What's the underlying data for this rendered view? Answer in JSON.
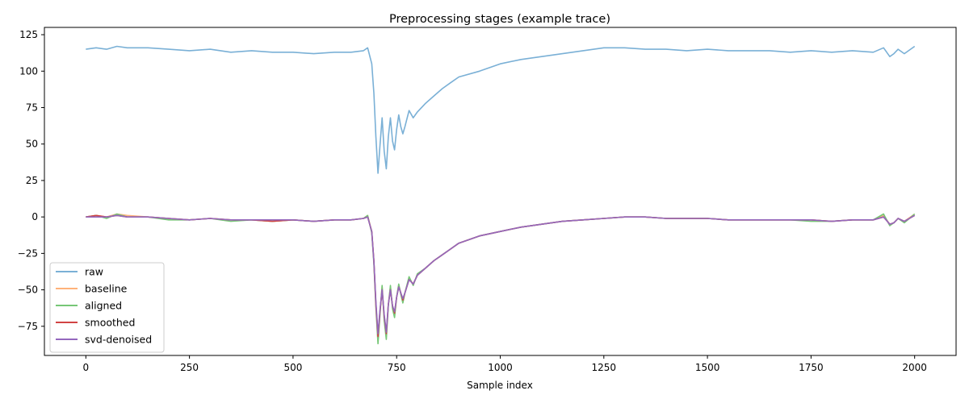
{
  "chart_data": {
    "type": "line",
    "title": "Preprocessing stages (example trace)",
    "xlabel": "Sample index",
    "ylabel": "",
    "xlim": [
      -100,
      2100
    ],
    "ylim": [
      -95,
      130
    ],
    "xticks": [
      0,
      250,
      500,
      750,
      1000,
      1250,
      1500,
      1750,
      2000
    ],
    "yticks": [
      -75,
      -50,
      -25,
      0,
      25,
      50,
      75,
      100,
      125
    ],
    "grid": false,
    "legend_position": "lower-left",
    "series": [
      {
        "name": "raw",
        "color": "#7ab0d6",
        "x": [
          0,
          25,
          50,
          75,
          100,
          150,
          200,
          250,
          300,
          350,
          400,
          450,
          500,
          550,
          600,
          640,
          670,
          680,
          690,
          695,
          700,
          705,
          710,
          715,
          720,
          725,
          730,
          735,
          740,
          745,
          750,
          755,
          760,
          765,
          770,
          780,
          790,
          800,
          820,
          840,
          860,
          880,
          900,
          950,
          1000,
          1050,
          1100,
          1150,
          1200,
          1250,
          1300,
          1350,
          1400,
          1450,
          1500,
          1550,
          1600,
          1650,
          1700,
          1750,
          1800,
          1850,
          1900,
          1925,
          1940,
          1950,
          1960,
          1975,
          2000
        ],
        "y": [
          115,
          116,
          115,
          117,
          116,
          116,
          115,
          114,
          115,
          113,
          114,
          113,
          113,
          112,
          113,
          113,
          114,
          116,
          105,
          85,
          55,
          30,
          50,
          68,
          45,
          33,
          55,
          68,
          52,
          46,
          60,
          70,
          62,
          57,
          62,
          73,
          68,
          72,
          78,
          83,
          88,
          92,
          96,
          100,
          105,
          108,
          110,
          112,
          114,
          116,
          116,
          115,
          115,
          114,
          115,
          114,
          114,
          114,
          113,
          114,
          113,
          114,
          113,
          116,
          110,
          112,
          115,
          112,
          117
        ]
      },
      {
        "name": "baseline",
        "color": "#ffb27a",
        "x": [
          0,
          25,
          50,
          75,
          100,
          150,
          200,
          250,
          300,
          350,
          400,
          450,
          500,
          550,
          600,
          640,
          670,
          680,
          690,
          695,
          700,
          705,
          710,
          715,
          720,
          725,
          730,
          735,
          740,
          745,
          750,
          755,
          760,
          765,
          770,
          780,
          790,
          800,
          820,
          840,
          860,
          880,
          900,
          950,
          1000,
          1050,
          1100,
          1150,
          1200,
          1250,
          1300,
          1350,
          1400,
          1450,
          1500,
          1550,
          1600,
          1650,
          1700,
          1750,
          1800,
          1850,
          1900,
          1925,
          1940,
          1950,
          1960,
          1975,
          2000
        ],
        "y": [
          0,
          1,
          0,
          2,
          1,
          0,
          -1,
          -2,
          -1,
          -2,
          -2,
          -3,
          -2,
          -3,
          -2,
          -2,
          -1,
          1,
          -10,
          -30,
          -60,
          -85,
          -65,
          -48,
          -70,
          -82,
          -60,
          -48,
          -62,
          -68,
          -55,
          -47,
          -52,
          -58,
          -52,
          -42,
          -46,
          -40,
          -35,
          -30,
          -26,
          -22,
          -18,
          -13,
          -10,
          -7,
          -5,
          -3,
          -2,
          -1,
          0,
          0,
          -1,
          -1,
          -1,
          -2,
          -2,
          -2,
          -2,
          -2,
          -3,
          -2,
          -2,
          1,
          -5,
          -4,
          -1,
          -3,
          2
        ]
      },
      {
        "name": "aligned",
        "color": "#76c776",
        "x": [
          0,
          25,
          50,
          75,
          100,
          150,
          200,
          250,
          300,
          350,
          400,
          450,
          500,
          550,
          600,
          640,
          670,
          680,
          690,
          695,
          700,
          705,
          710,
          715,
          720,
          725,
          730,
          735,
          740,
          745,
          750,
          755,
          760,
          765,
          770,
          780,
          790,
          800,
          820,
          840,
          860,
          880,
          900,
          950,
          1000,
          1050,
          1100,
          1150,
          1200,
          1250,
          1300,
          1350,
          1400,
          1450,
          1500,
          1550,
          1600,
          1650,
          1700,
          1750,
          1800,
          1850,
          1900,
          1925,
          1940,
          1950,
          1960,
          1975,
          2000
        ],
        "y": [
          0,
          1,
          -1,
          2,
          0,
          0,
          -2,
          -2,
          -1,
          -3,
          -2,
          -3,
          -2,
          -3,
          -2,
          -2,
          -1,
          1,
          -11,
          -32,
          -62,
          -87,
          -66,
          -47,
          -71,
          -84,
          -61,
          -47,
          -63,
          -69,
          -55,
          -46,
          -53,
          -59,
          -52,
          -41,
          -47,
          -39,
          -35,
          -30,
          -26,
          -22,
          -18,
          -13,
          -10,
          -7,
          -5,
          -3,
          -2,
          -1,
          0,
          0,
          -1,
          -1,
          -1,
          -2,
          -2,
          -2,
          -2,
          -3,
          -3,
          -2,
          -2,
          2,
          -6,
          -4,
          -1,
          -4,
          2
        ]
      },
      {
        "name": "smoothed",
        "color": "#d14343",
        "x": [
          0,
          25,
          50,
          75,
          100,
          150,
          200,
          250,
          300,
          350,
          400,
          450,
          500,
          550,
          600,
          640,
          670,
          680,
          690,
          695,
          700,
          705,
          710,
          715,
          720,
          725,
          730,
          735,
          740,
          745,
          750,
          755,
          760,
          765,
          770,
          780,
          790,
          800,
          820,
          840,
          860,
          880,
          900,
          950,
          1000,
          1050,
          1100,
          1150,
          1200,
          1250,
          1300,
          1350,
          1400,
          1450,
          1500,
          1550,
          1600,
          1650,
          1700,
          1750,
          1800,
          1850,
          1900,
          1925,
          1940,
          1950,
          1960,
          1975,
          2000
        ],
        "y": [
          0,
          1,
          0,
          1,
          0,
          0,
          -1,
          -2,
          -1,
          -2,
          -2,
          -3,
          -2,
          -3,
          -2,
          -2,
          -1,
          0,
          -10,
          -30,
          -60,
          -82,
          -64,
          -50,
          -68,
          -80,
          -60,
          -50,
          -61,
          -66,
          -55,
          -48,
          -52,
          -57,
          -52,
          -43,
          -46,
          -40,
          -35,
          -30,
          -26,
          -22,
          -18,
          -13,
          -10,
          -7,
          -5,
          -3,
          -2,
          -1,
          0,
          0,
          -1,
          -1,
          -1,
          -2,
          -2,
          -2,
          -2,
          -2,
          -3,
          -2,
          -2,
          0,
          -5,
          -4,
          -1,
          -3,
          1
        ]
      },
      {
        "name": "svd-denoised",
        "color": "#9467bd",
        "x": [
          0,
          25,
          50,
          75,
          100,
          150,
          200,
          250,
          300,
          350,
          400,
          450,
          500,
          550,
          600,
          640,
          670,
          680,
          690,
          695,
          700,
          705,
          710,
          715,
          720,
          725,
          730,
          735,
          740,
          745,
          750,
          755,
          760,
          765,
          770,
          780,
          790,
          800,
          820,
          840,
          860,
          880,
          900,
          950,
          1000,
          1050,
          1100,
          1150,
          1200,
          1250,
          1300,
          1350,
          1400,
          1450,
          1500,
          1550,
          1600,
          1650,
          1700,
          1750,
          1800,
          1850,
          1900,
          1925,
          1940,
          1950,
          1960,
          1975,
          2000
        ],
        "y": [
          0,
          0,
          0,
          1,
          0,
          0,
          -1,
          -2,
          -1,
          -2,
          -2,
          -2,
          -2,
          -3,
          -2,
          -2,
          -1,
          0,
          -10,
          -30,
          -58,
          -80,
          -63,
          -50,
          -67,
          -79,
          -60,
          -50,
          -61,
          -65,
          -55,
          -48,
          -52,
          -56,
          -52,
          -43,
          -46,
          -40,
          -35,
          -30,
          -26,
          -22,
          -18,
          -13,
          -10,
          -7,
          -5,
          -3,
          -2,
          -1,
          0,
          0,
          -1,
          -1,
          -1,
          -2,
          -2,
          -2,
          -2,
          -2,
          -3,
          -2,
          -2,
          0,
          -5,
          -4,
          -1,
          -3,
          1
        ]
      }
    ]
  }
}
